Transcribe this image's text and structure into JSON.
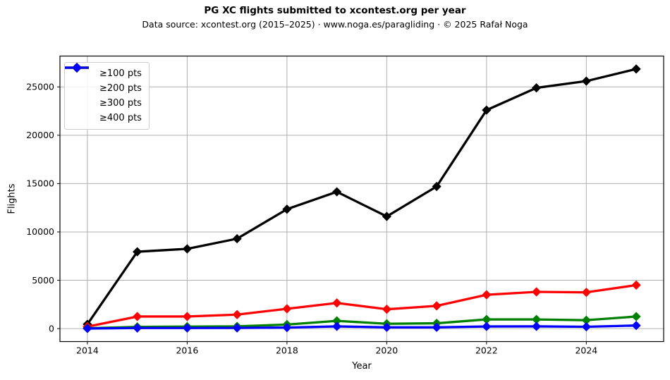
{
  "chart_data": {
    "type": "line",
    "title": "PG XC flights submitted to xcontest.org per year",
    "subtitle": "Data source: xcontest.org (2015–2025) · www.noga.es/paragliding · © 2025 Rafał Noga",
    "xlabel": "Year",
    "ylabel": "Flights",
    "x": [
      2014,
      2015,
      2016,
      2017,
      2018,
      2019,
      2020,
      2021,
      2022,
      2023,
      2024,
      2025
    ],
    "series": [
      {
        "name": "≥100 pts",
        "color": "#000000",
        "values": [
          450,
          7950,
          8250,
          9300,
          12350,
          14150,
          11600,
          14700,
          22600,
          24900,
          25600,
          26850
        ]
      },
      {
        "name": "≥200 pts",
        "color": "#ff0000",
        "values": [
          200,
          1250,
          1250,
          1450,
          2050,
          2650,
          2000,
          2350,
          3500,
          3800,
          3750,
          4500
        ]
      },
      {
        "name": "≥300 pts",
        "color": "#008000",
        "values": [
          40,
          180,
          210,
          230,
          420,
          800,
          500,
          550,
          950,
          950,
          870,
          1250
        ]
      },
      {
        "name": "≥400 pts",
        "color": "#0000ff",
        "values": [
          10,
          60,
          60,
          70,
          110,
          230,
          130,
          130,
          220,
          230,
          190,
          320
        ]
      }
    ],
    "xticks": [
      2014,
      2016,
      2018,
      2020,
      2022,
      2024
    ],
    "yticks": [
      0,
      5000,
      10000,
      15000,
      20000,
      25000
    ],
    "xlim": [
      2013.45,
      2025.55
    ],
    "ylim": [
      -1342,
      28192
    ],
    "grid": true,
    "grid_color": "#b0b0b0",
    "marker": "diamond",
    "legend_position": "upper-left"
  }
}
